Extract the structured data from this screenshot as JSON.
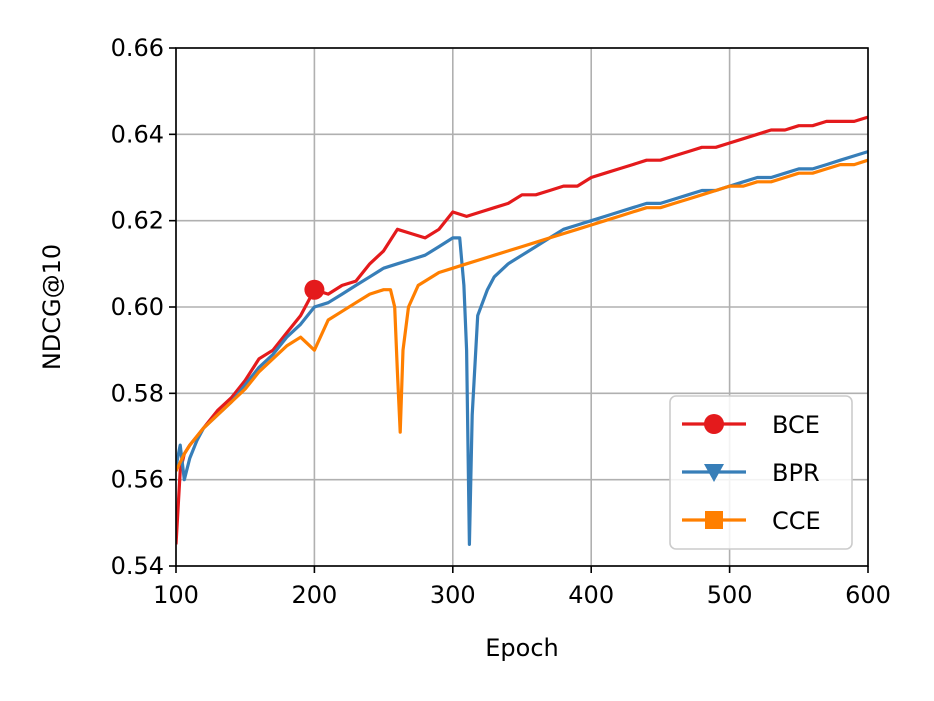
{
  "chart_data": {
    "type": "line",
    "title": "",
    "xlabel": "Epoch",
    "ylabel": "NDCG@10",
    "xlim": [
      100,
      600
    ],
    "ylim": [
      0.54,
      0.66
    ],
    "xticks": [
      100,
      200,
      300,
      400,
      500,
      600
    ],
    "yticks": [
      0.54,
      0.56,
      0.58,
      0.6,
      0.62,
      0.64,
      0.66
    ],
    "xtick_labels": [
      "100",
      "200",
      "300",
      "400",
      "500",
      "600"
    ],
    "ytick_labels": [
      "0.54",
      "0.56",
      "0.58",
      "0.60",
      "0.62",
      "0.64",
      "0.66"
    ],
    "grid": true,
    "legend_position": "lower-right",
    "series": [
      {
        "name": "BCE",
        "color": "#e41a1c",
        "marker": "circle",
        "points": [
          [
            100,
            0.545
          ],
          [
            103,
            0.562
          ],
          [
            106,
            0.566
          ],
          [
            110,
            0.568
          ],
          [
            115,
            0.57
          ],
          [
            120,
            0.572
          ],
          [
            130,
            0.576
          ],
          [
            140,
            0.579
          ],
          [
            150,
            0.583
          ],
          [
            160,
            0.588
          ],
          [
            170,
            0.59
          ],
          [
            180,
            0.594
          ],
          [
            190,
            0.598
          ],
          [
            200,
            0.604
          ],
          [
            210,
            0.603
          ],
          [
            220,
            0.605
          ],
          [
            230,
            0.606
          ],
          [
            240,
            0.61
          ],
          [
            250,
            0.613
          ],
          [
            260,
            0.618
          ],
          [
            270,
            0.617
          ],
          [
            280,
            0.616
          ],
          [
            290,
            0.618
          ],
          [
            300,
            0.622
          ],
          [
            310,
            0.621
          ],
          [
            320,
            0.622
          ],
          [
            330,
            0.623
          ],
          [
            340,
            0.624
          ],
          [
            350,
            0.626
          ],
          [
            360,
            0.626
          ],
          [
            370,
            0.627
          ],
          [
            380,
            0.628
          ],
          [
            390,
            0.628
          ],
          [
            400,
            0.63
          ],
          [
            410,
            0.631
          ],
          [
            420,
            0.632
          ],
          [
            430,
            0.633
          ],
          [
            440,
            0.634
          ],
          [
            450,
            0.634
          ],
          [
            460,
            0.635
          ],
          [
            470,
            0.636
          ],
          [
            480,
            0.637
          ],
          [
            490,
            0.637
          ],
          [
            500,
            0.638
          ],
          [
            510,
            0.639
          ],
          [
            520,
            0.64
          ],
          [
            530,
            0.641
          ],
          [
            540,
            0.641
          ],
          [
            550,
            0.642
          ],
          [
            560,
            0.642
          ],
          [
            570,
            0.643
          ],
          [
            580,
            0.643
          ],
          [
            590,
            0.643
          ],
          [
            600,
            0.644
          ]
        ],
        "marker_points": [
          [
            200,
            0.604
          ]
        ]
      },
      {
        "name": "BPR",
        "color": "#377eb8",
        "marker": "triangle-down",
        "points": [
          [
            100,
            0.563
          ],
          [
            103,
            0.568
          ],
          [
            106,
            0.56
          ],
          [
            110,
            0.565
          ],
          [
            115,
            0.569
          ],
          [
            120,
            0.572
          ],
          [
            130,
            0.575
          ],
          [
            140,
            0.578
          ],
          [
            150,
            0.582
          ],
          [
            160,
            0.586
          ],
          [
            170,
            0.589
          ],
          [
            180,
            0.593
          ],
          [
            190,
            0.596
          ],
          [
            200,
            0.6
          ],
          [
            210,
            0.601
          ],
          [
            220,
            0.603
          ],
          [
            230,
            0.605
          ],
          [
            240,
            0.607
          ],
          [
            250,
            0.609
          ],
          [
            260,
            0.61
          ],
          [
            270,
            0.611
          ],
          [
            280,
            0.612
          ],
          [
            290,
            0.614
          ],
          [
            300,
            0.616
          ],
          [
            305,
            0.616
          ],
          [
            308,
            0.605
          ],
          [
            310,
            0.59
          ],
          [
            312,
            0.545
          ],
          [
            314,
            0.575
          ],
          [
            318,
            0.598
          ],
          [
            325,
            0.604
          ],
          [
            330,
            0.607
          ],
          [
            340,
            0.61
          ],
          [
            350,
            0.612
          ],
          [
            360,
            0.614
          ],
          [
            370,
            0.616
          ],
          [
            380,
            0.618
          ],
          [
            390,
            0.619
          ],
          [
            400,
            0.62
          ],
          [
            410,
            0.621
          ],
          [
            420,
            0.622
          ],
          [
            430,
            0.623
          ],
          [
            440,
            0.624
          ],
          [
            450,
            0.624
          ],
          [
            460,
            0.625
          ],
          [
            470,
            0.626
          ],
          [
            480,
            0.627
          ],
          [
            490,
            0.627
          ],
          [
            500,
            0.628
          ],
          [
            510,
            0.629
          ],
          [
            520,
            0.63
          ],
          [
            530,
            0.63
          ],
          [
            540,
            0.631
          ],
          [
            550,
            0.632
          ],
          [
            560,
            0.632
          ],
          [
            570,
            0.633
          ],
          [
            580,
            0.634
          ],
          [
            590,
            0.635
          ],
          [
            600,
            0.636
          ]
        ],
        "marker_points": []
      },
      {
        "name": "CCE",
        "color": "#ff7f00",
        "marker": "square",
        "points": [
          [
            100,
            0.562
          ],
          [
            103,
            0.564
          ],
          [
            106,
            0.566
          ],
          [
            110,
            0.568
          ],
          [
            115,
            0.57
          ],
          [
            120,
            0.572
          ],
          [
            130,
            0.575
          ],
          [
            140,
            0.578
          ],
          [
            150,
            0.581
          ],
          [
            160,
            0.585
          ],
          [
            170,
            0.588
          ],
          [
            180,
            0.591
          ],
          [
            190,
            0.593
          ],
          [
            200,
            0.59
          ],
          [
            210,
            0.597
          ],
          [
            220,
            0.599
          ],
          [
            230,
            0.601
          ],
          [
            240,
            0.603
          ],
          [
            250,
            0.604
          ],
          [
            255,
            0.604
          ],
          [
            258,
            0.6
          ],
          [
            260,
            0.585
          ],
          [
            262,
            0.571
          ],
          [
            264,
            0.59
          ],
          [
            268,
            0.6
          ],
          [
            275,
            0.605
          ],
          [
            280,
            0.606
          ],
          [
            290,
            0.608
          ],
          [
            300,
            0.609
          ],
          [
            310,
            0.61
          ],
          [
            320,
            0.611
          ],
          [
            330,
            0.612
          ],
          [
            340,
            0.613
          ],
          [
            350,
            0.614
          ],
          [
            360,
            0.615
          ],
          [
            370,
            0.616
          ],
          [
            380,
            0.617
          ],
          [
            390,
            0.618
          ],
          [
            400,
            0.619
          ],
          [
            410,
            0.62
          ],
          [
            420,
            0.621
          ],
          [
            430,
            0.622
          ],
          [
            440,
            0.623
          ],
          [
            450,
            0.623
          ],
          [
            460,
            0.624
          ],
          [
            470,
            0.625
          ],
          [
            480,
            0.626
          ],
          [
            490,
            0.627
          ],
          [
            500,
            0.628
          ],
          [
            510,
            0.628
          ],
          [
            520,
            0.629
          ],
          [
            530,
            0.629
          ],
          [
            540,
            0.63
          ],
          [
            550,
            0.631
          ],
          [
            560,
            0.631
          ],
          [
            570,
            0.632
          ],
          [
            580,
            0.633
          ],
          [
            590,
            0.633
          ],
          [
            600,
            0.634
          ]
        ],
        "marker_points": []
      }
    ]
  }
}
